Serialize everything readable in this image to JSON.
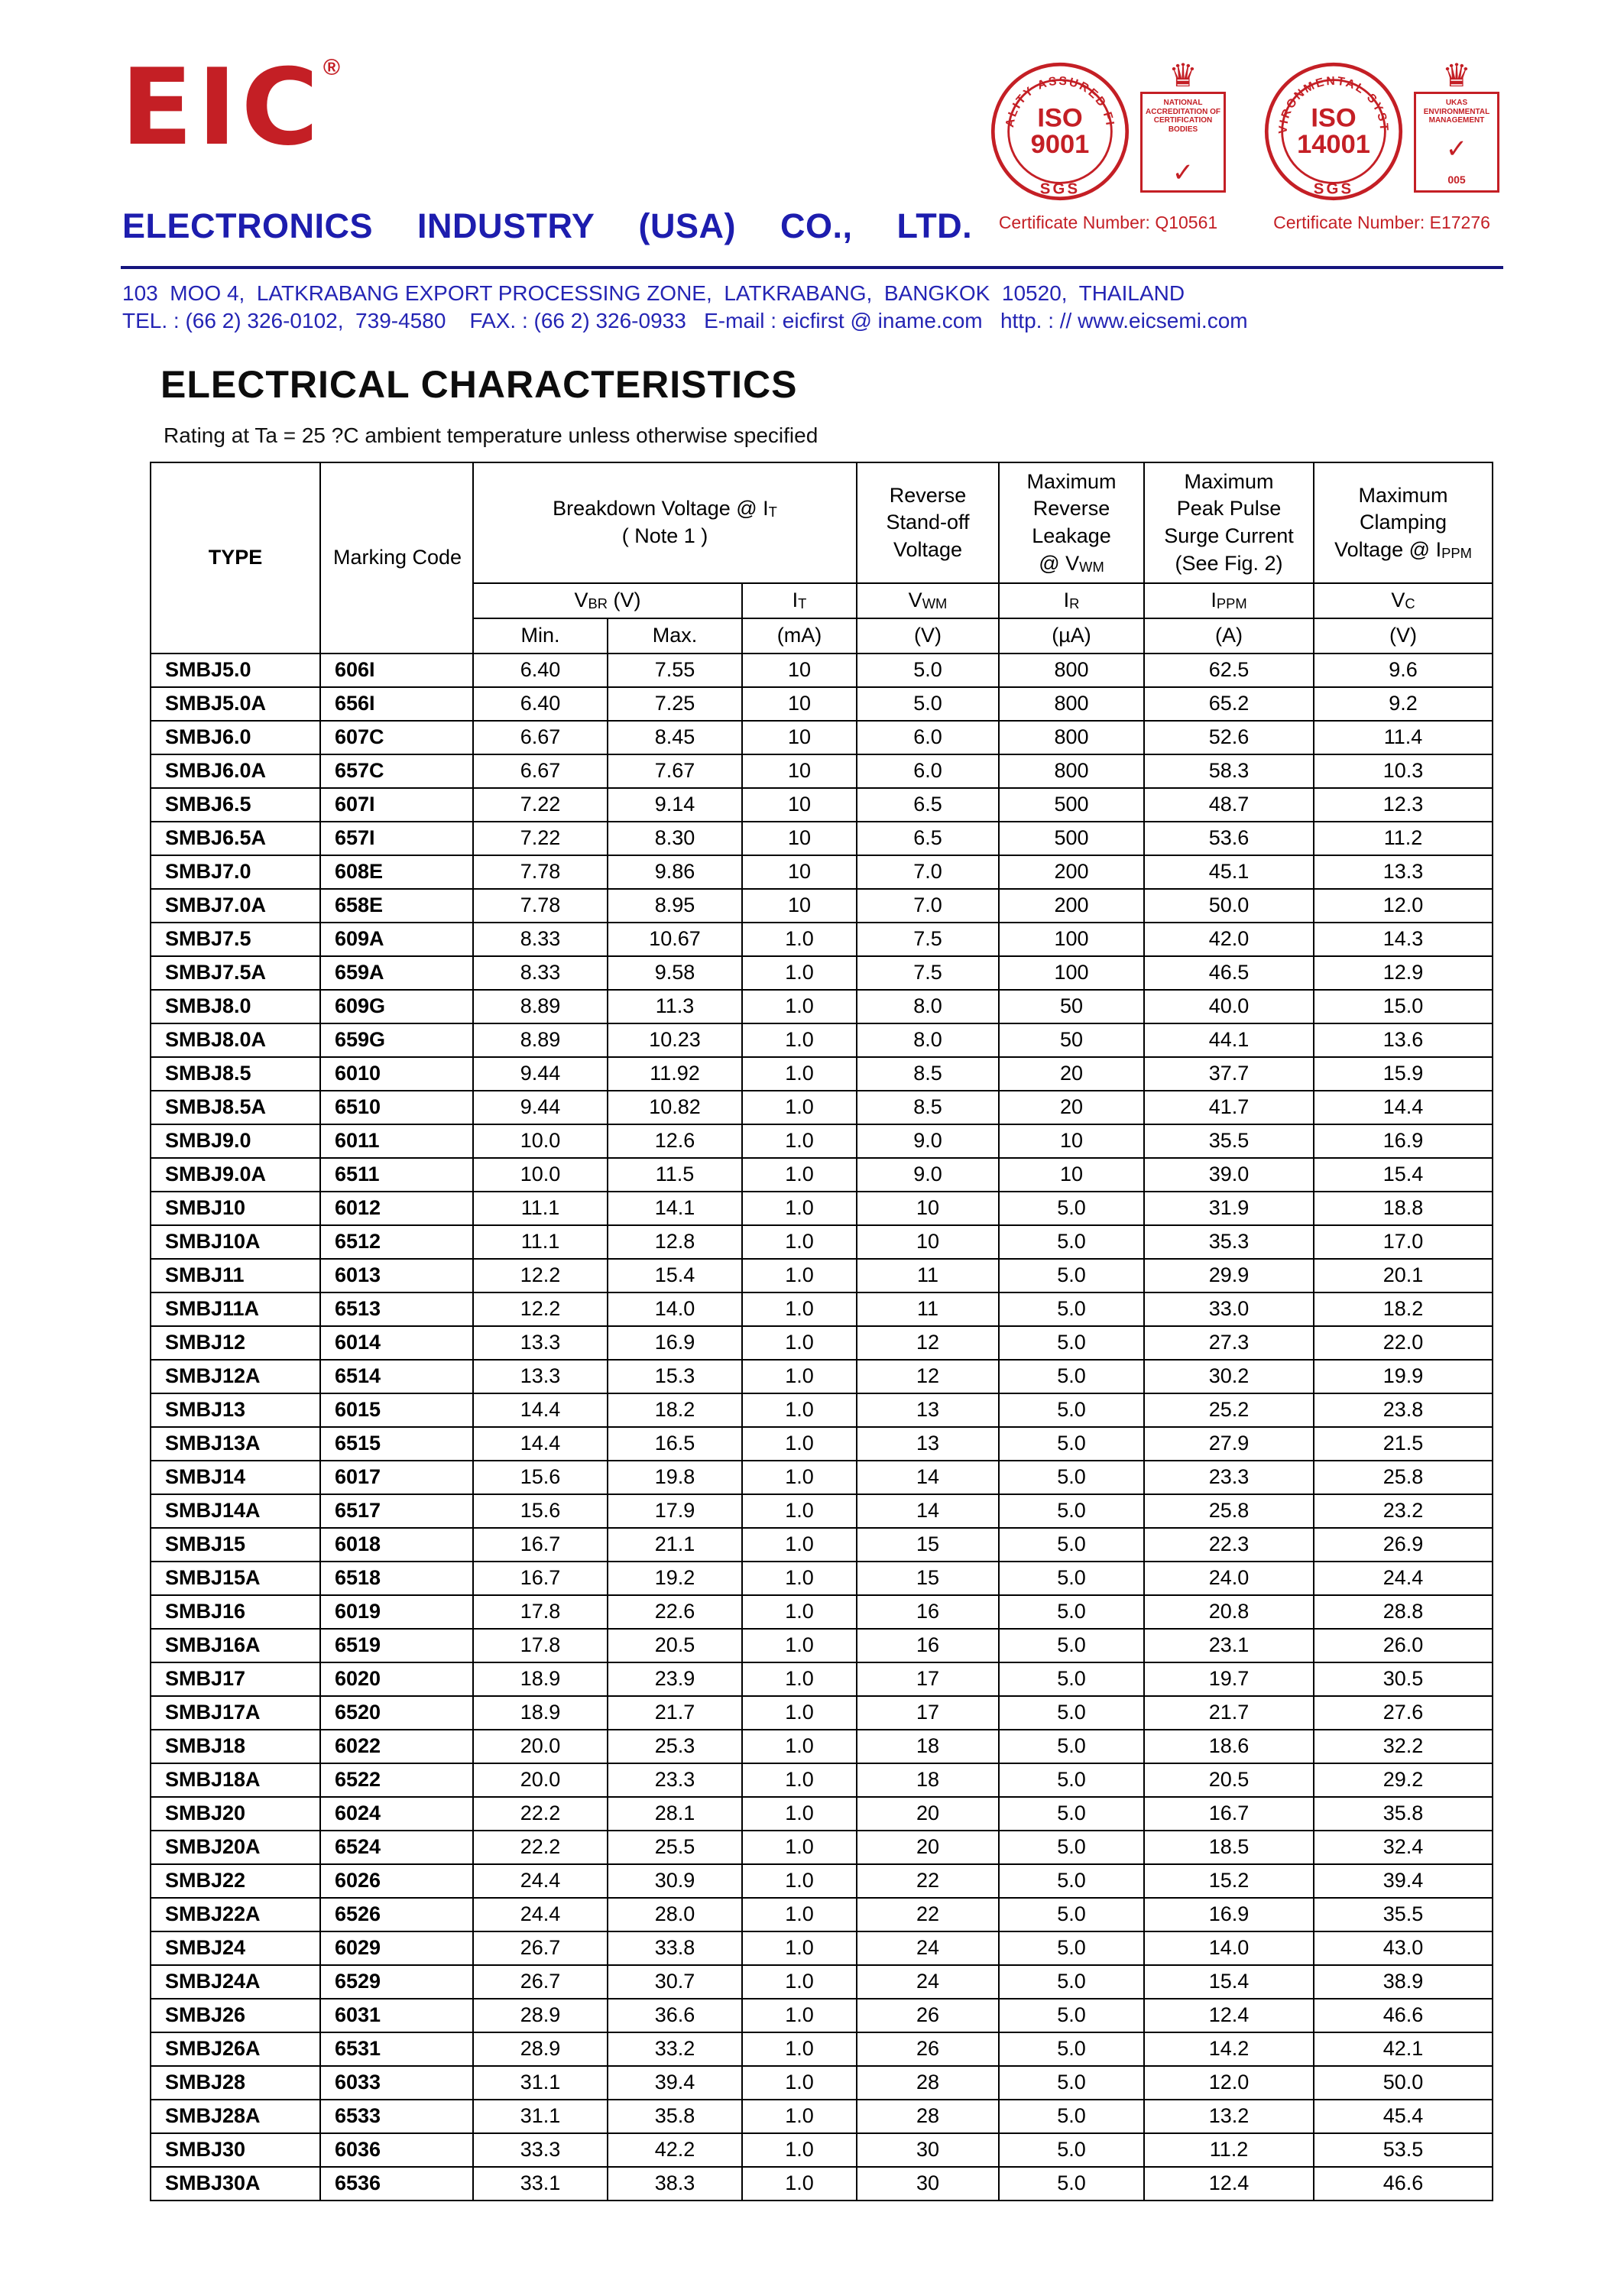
{
  "header": {
    "logo_text": "EIC",
    "registered_mark": "®",
    "company_name": "ELECTRONICS  INDUSTRY  (USA)  CO.,  LTD.",
    "address_line": "103  MOO 4,  LATKRABANG EXPORT PROCESSING ZONE,  LATKRABANG,  BANGKOK  10520,  THAILAND",
    "contact_line": "TEL. : (66 2) 326-0102,  739-4580    FAX. : (66 2) 326-0933   E-mail : eicfirst @ iname.com   http. : // www.eicsemi.com",
    "badges": {
      "iso9001": {
        "arc_text": "QUALITY ASSURED FIRM",
        "iso": "ISO",
        "number": "9001",
        "sgs": "SGS",
        "crest_text": "NATIONAL ACCREDITATION OF CERTIFICATION BODIES",
        "check": "✓",
        "crown": "♛",
        "certificate": "Certificate Number: Q10561"
      },
      "iso14001": {
        "arc_text": "ENVIRONMENTAL SYSTEM",
        "iso": "ISO",
        "number": "14001",
        "sgs": "SGS",
        "crest_text": "UKAS ENVIRONMENTAL MANAGEMENT",
        "check": "✓",
        "crown": "♛",
        "crest_number": "005",
        "certificate": "Certificate Number: E17276"
      }
    }
  },
  "section": {
    "title": "ELECTRICAL CHARACTERISTICS",
    "subtitle": "Rating at Ta = 25 ?C ambient temperature unless otherwise specified"
  },
  "table": {
    "col_type": "TYPE",
    "col_marking": "Marking Code",
    "groups": {
      "breakdown": "Breakdown Voltage @  I~T~\n( Note 1 )",
      "standoff": "Reverse\nStand-off\nVoltage",
      "leakage": "Maximum\nReverse\nLeakage\n@ V~WM~",
      "surge": "Maximum\nPeak Pulse\nSurge Current\n(See Fig. 2)",
      "clamping": "Maximum\nClamping\nVoltage @ I~PPM~"
    },
    "symbols": {
      "vbr": "V~BR~  (V)",
      "it": "I~T~",
      "vwm": "V~WM~",
      "ir": "I~R~",
      "ippm": "I~PPM~",
      "vc": "V~C~"
    },
    "units": [
      "Min.",
      "Max.",
      "(mA)",
      "(V)",
      "(µA)",
      "(A)",
      "(V)"
    ],
    "field_names": [
      "type",
      "marking-code",
      "vbr-min",
      "vbr-max",
      "it",
      "vwm",
      "ir",
      "ippm",
      "vc"
    ],
    "rows": [
      [
        "SMBJ5.0",
        "606I",
        "6.40",
        "7.55",
        "10",
        "5.0",
        "800",
        "62.5",
        "9.6"
      ],
      [
        "SMBJ5.0A",
        "656I",
        "6.40",
        "7.25",
        "10",
        "5.0",
        "800",
        "65.2",
        "9.2"
      ],
      [
        "SMBJ6.0",
        "607C",
        "6.67",
        "8.45",
        "10",
        "6.0",
        "800",
        "52.6",
        "11.4"
      ],
      [
        "SMBJ6.0A",
        "657C",
        "6.67",
        "7.67",
        "10",
        "6.0",
        "800",
        "58.3",
        "10.3"
      ],
      [
        "SMBJ6.5",
        "607I",
        "7.22",
        "9.14",
        "10",
        "6.5",
        "500",
        "48.7",
        "12.3"
      ],
      [
        "SMBJ6.5A",
        "657I",
        "7.22",
        "8.30",
        "10",
        "6.5",
        "500",
        "53.6",
        "11.2"
      ],
      [
        "SMBJ7.0",
        "608E",
        "7.78",
        "9.86",
        "10",
        "7.0",
        "200",
        "45.1",
        "13.3"
      ],
      [
        "SMBJ7.0A",
        "658E",
        "7.78",
        "8.95",
        "10",
        "7.0",
        "200",
        "50.0",
        "12.0"
      ],
      [
        "SMBJ7.5",
        "609A",
        "8.33",
        "10.67",
        "1.0",
        "7.5",
        "100",
        "42.0",
        "14.3"
      ],
      [
        "SMBJ7.5A",
        "659A",
        "8.33",
        "9.58",
        "1.0",
        "7.5",
        "100",
        "46.5",
        "12.9"
      ],
      [
        "SMBJ8.0",
        "609G",
        "8.89",
        "11.3",
        "1.0",
        "8.0",
        "50",
        "40.0",
        "15.0"
      ],
      [
        "SMBJ8.0A",
        "659G",
        "8.89",
        "10.23",
        "1.0",
        "8.0",
        "50",
        "44.1",
        "13.6"
      ],
      [
        "SMBJ8.5",
        "6010",
        "9.44",
        "11.92",
        "1.0",
        "8.5",
        "20",
        "37.7",
        "15.9"
      ],
      [
        "SMBJ8.5A",
        "6510",
        "9.44",
        "10.82",
        "1.0",
        "8.5",
        "20",
        "41.7",
        "14.4"
      ],
      [
        "SMBJ9.0",
        "6011",
        "10.0",
        "12.6",
        "1.0",
        "9.0",
        "10",
        "35.5",
        "16.9"
      ],
      [
        "SMBJ9.0A",
        "6511",
        "10.0",
        "11.5",
        "1.0",
        "9.0",
        "10",
        "39.0",
        "15.4"
      ],
      [
        "SMBJ10",
        "6012",
        "11.1",
        "14.1",
        "1.0",
        "10",
        "5.0",
        "31.9",
        "18.8"
      ],
      [
        "SMBJ10A",
        "6512",
        "11.1",
        "12.8",
        "1.0",
        "10",
        "5.0",
        "35.3",
        "17.0"
      ],
      [
        "SMBJ11",
        "6013",
        "12.2",
        "15.4",
        "1.0",
        "11",
        "5.0",
        "29.9",
        "20.1"
      ],
      [
        "SMBJ11A",
        "6513",
        "12.2",
        "14.0",
        "1.0",
        "11",
        "5.0",
        "33.0",
        "18.2"
      ],
      [
        "SMBJ12",
        "6014",
        "13.3",
        "16.9",
        "1.0",
        "12",
        "5.0",
        "27.3",
        "22.0"
      ],
      [
        "SMBJ12A",
        "6514",
        "13.3",
        "15.3",
        "1.0",
        "12",
        "5.0",
        "30.2",
        "19.9"
      ],
      [
        "SMBJ13",
        "6015",
        "14.4",
        "18.2",
        "1.0",
        "13",
        "5.0",
        "25.2",
        "23.8"
      ],
      [
        "SMBJ13A",
        "6515",
        "14.4",
        "16.5",
        "1.0",
        "13",
        "5.0",
        "27.9",
        "21.5"
      ],
      [
        "SMBJ14",
        "6017",
        "15.6",
        "19.8",
        "1.0",
        "14",
        "5.0",
        "23.3",
        "25.8"
      ],
      [
        "SMBJ14A",
        "6517",
        "15.6",
        "17.9",
        "1.0",
        "14",
        "5.0",
        "25.8",
        "23.2"
      ],
      [
        "SMBJ15",
        "6018",
        "16.7",
        "21.1",
        "1.0",
        "15",
        "5.0",
        "22.3",
        "26.9"
      ],
      [
        "SMBJ15A",
        "6518",
        "16.7",
        "19.2",
        "1.0",
        "15",
        "5.0",
        "24.0",
        "24.4"
      ],
      [
        "SMBJ16",
        "6019",
        "17.8",
        "22.6",
        "1.0",
        "16",
        "5.0",
        "20.8",
        "28.8"
      ],
      [
        "SMBJ16A",
        "6519",
        "17.8",
        "20.5",
        "1.0",
        "16",
        "5.0",
        "23.1",
        "26.0"
      ],
      [
        "SMBJ17",
        "6020",
        "18.9",
        "23.9",
        "1.0",
        "17",
        "5.0",
        "19.7",
        "30.5"
      ],
      [
        "SMBJ17A",
        "6520",
        "18.9",
        "21.7",
        "1.0",
        "17",
        "5.0",
        "21.7",
        "27.6"
      ],
      [
        "SMBJ18",
        "6022",
        "20.0",
        "25.3",
        "1.0",
        "18",
        "5.0",
        "18.6",
        "32.2"
      ],
      [
        "SMBJ18A",
        "6522",
        "20.0",
        "23.3",
        "1.0",
        "18",
        "5.0",
        "20.5",
        "29.2"
      ],
      [
        "SMBJ20",
        "6024",
        "22.2",
        "28.1",
        "1.0",
        "20",
        "5.0",
        "16.7",
        "35.8"
      ],
      [
        "SMBJ20A",
        "6524",
        "22.2",
        "25.5",
        "1.0",
        "20",
        "5.0",
        "18.5",
        "32.4"
      ],
      [
        "SMBJ22",
        "6026",
        "24.4",
        "30.9",
        "1.0",
        "22",
        "5.0",
        "15.2",
        "39.4"
      ],
      [
        "SMBJ22A",
        "6526",
        "24.4",
        "28.0",
        "1.0",
        "22",
        "5.0",
        "16.9",
        "35.5"
      ],
      [
        "SMBJ24",
        "6029",
        "26.7",
        "33.8",
        "1.0",
        "24",
        "5.0",
        "14.0",
        "43.0"
      ],
      [
        "SMBJ24A",
        "6529",
        "26.7",
        "30.7",
        "1.0",
        "24",
        "5.0",
        "15.4",
        "38.9"
      ],
      [
        "SMBJ26",
        "6031",
        "28.9",
        "36.6",
        "1.0",
        "26",
        "5.0",
        "12.4",
        "46.6"
      ],
      [
        "SMBJ26A",
        "6531",
        "28.9",
        "33.2",
        "1.0",
        "26",
        "5.0",
        "14.2",
        "42.1"
      ],
      [
        "SMBJ28",
        "6033",
        "31.1",
        "39.4",
        "1.0",
        "28",
        "5.0",
        "12.0",
        "50.0"
      ],
      [
        "SMBJ28A",
        "6533",
        "31.1",
        "35.8",
        "1.0",
        "28",
        "5.0",
        "13.2",
        "45.4"
      ],
      [
        "SMBJ30",
        "6036",
        "33.3",
        "42.2",
        "1.0",
        "30",
        "5.0",
        "11.2",
        "53.5"
      ],
      [
        "SMBJ30A",
        "6536",
        "33.1",
        "38.3",
        "1.0",
        "30",
        "5.0",
        "12.4",
        "46.6"
      ]
    ]
  }
}
